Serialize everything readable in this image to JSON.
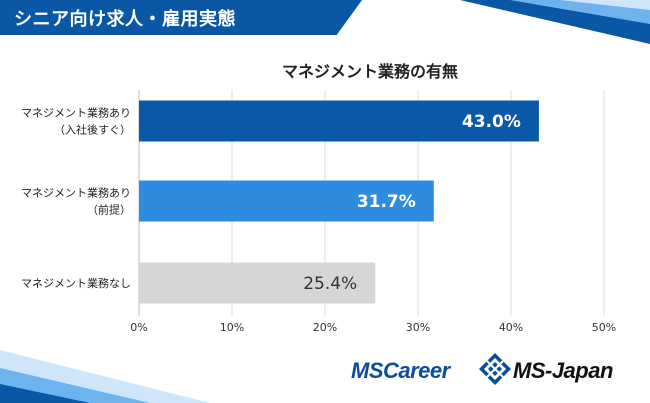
{
  "header": {
    "title": "シニア向け求人・雇用実態"
  },
  "colors": {
    "banner": "#0a57a6",
    "bar_dark": "#0b57a8",
    "bar_mid": "#2d8ce0",
    "bar_gray": "#d6d6d6",
    "grid": "#dcdcdc"
  },
  "chart_data": {
    "type": "bar",
    "orientation": "horizontal",
    "title": "マネジメント業務の有無",
    "categories": [
      [
        "マネジメント業務あり",
        "（入社後すぐ）"
      ],
      [
        "マネジメント業務あり",
        "（前提）"
      ],
      [
        "マネジメント業務なし"
      ]
    ],
    "values": [
      43.0,
      31.7,
      25.4
    ],
    "value_labels": [
      "43.0%",
      "31.7%",
      "25.4%"
    ],
    "xlim": [
      0,
      50
    ],
    "xticks": [
      "0%",
      "10%",
      "20%",
      "30%",
      "40%",
      "50%"
    ],
    "grid": true
  },
  "logos": {
    "left": "MSCareer",
    "right": "MS-Japan",
    "mark_icon": "ms-diamond-icon"
  }
}
